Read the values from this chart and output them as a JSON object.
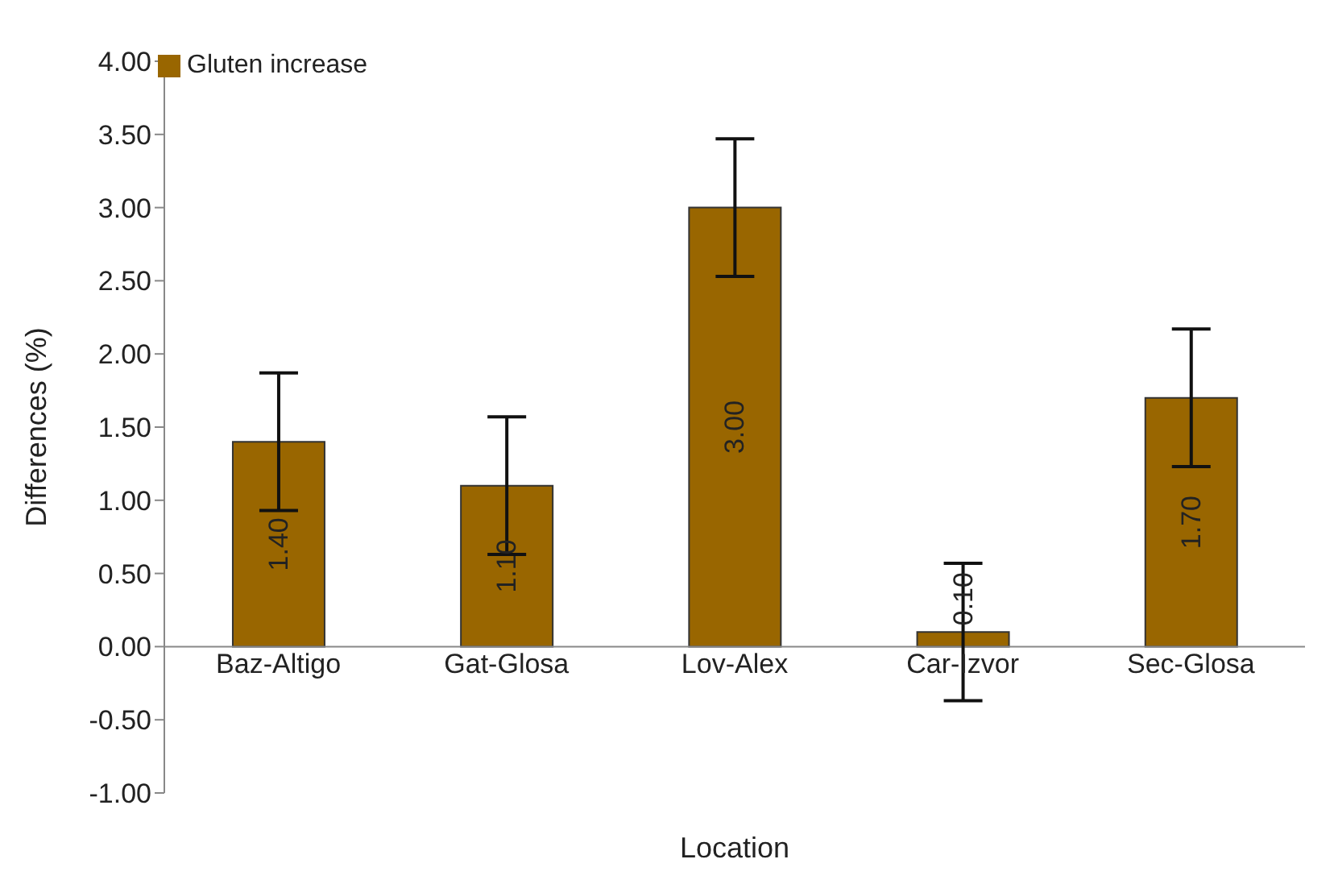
{
  "chart_data": {
    "type": "bar",
    "xlabel": "Location",
    "ylabel": "Differences (%)",
    "categories": [
      "Baz-Altigo",
      "Gat-Glosa",
      "Lov-Alex",
      "Car-Izvor",
      "Sec-Glosa"
    ],
    "series": [
      {
        "name": "Gluten increase",
        "color": "#996600",
        "values": [
          1.4,
          1.1,
          3.0,
          0.1,
          1.7
        ],
        "errors": [
          0.47,
          0.47,
          0.47,
          0.47,
          0.47
        ]
      }
    ],
    "ylim": [
      -1,
      4
    ],
    "yticks": [
      {
        "value": -1,
        "label": "-1.00"
      },
      {
        "value": -0.5,
        "label": "-0.50"
      },
      {
        "value": 0,
        "label": "0.00"
      },
      {
        "value": 0.5,
        "label": "0.50"
      },
      {
        "value": 1,
        "label": "1.00"
      },
      {
        "value": 1.5,
        "label": "1.50"
      },
      {
        "value": 2,
        "label": "2.00"
      },
      {
        "value": 2.5,
        "label": "2.50"
      },
      {
        "value": 3,
        "label": "3.00"
      },
      {
        "value": 3.5,
        "label": "3.50"
      },
      {
        "value": 4,
        "label": "4.00"
      }
    ],
    "value_labels": [
      "1.40",
      "1.10",
      "3.00",
      "0.10",
      "1.70"
    ],
    "legend": "top left",
    "grid": false
  }
}
